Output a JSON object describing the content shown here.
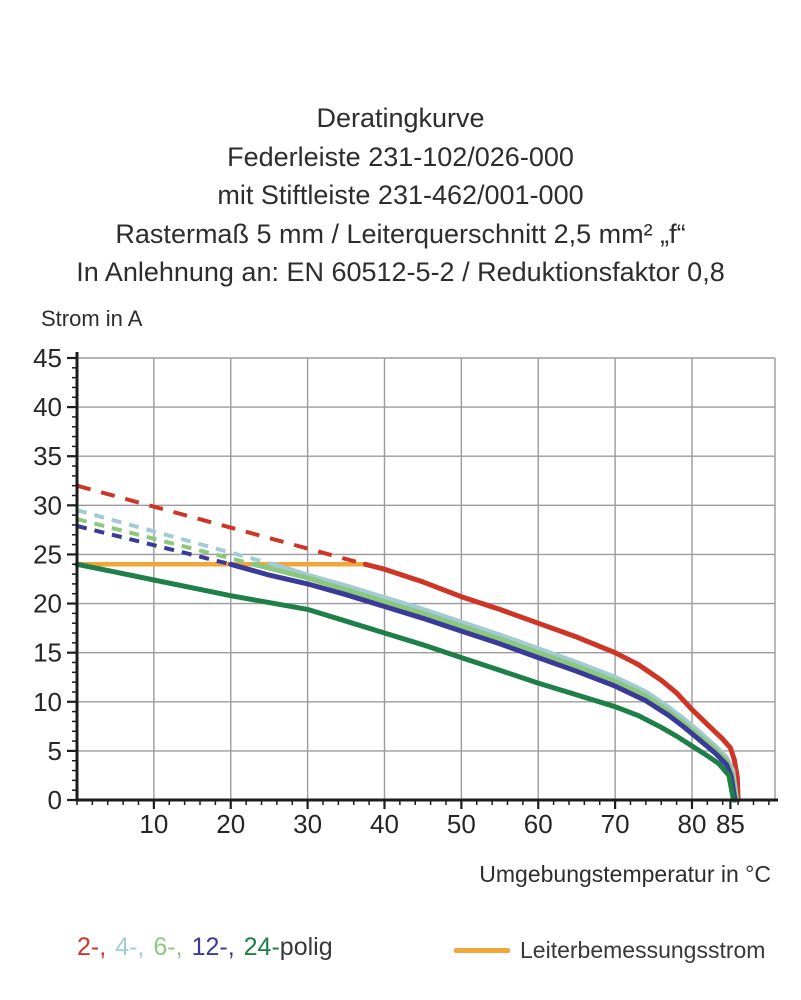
{
  "header": {
    "lines": [
      "Deratingkurve",
      "Federleiste 231-102/026-000",
      "mit Stiftleiste 231-462/001-000",
      "Rastermaß 5 mm / Leiterquerschnitt 2,5 mm² „f“",
      "In Anlehnung an: EN 60512-5-2 / Reduktionsfaktor 0,8"
    ]
  },
  "chart_data": {
    "type": "line",
    "title": "Deratingkurve",
    "y_axis_title": "Strom in A",
    "x_axis_title": "Umgebungstemperatur in °C",
    "x_unit": "°C",
    "y_unit": "A",
    "xlim": [
      0,
      90.8
    ],
    "ylim": [
      0,
      45
    ],
    "x_ticks_labeled": [
      10,
      20,
      30,
      40,
      50,
      60,
      70,
      80,
      85
    ],
    "x_minor_step": 2,
    "y_ticks_labeled": [
      0,
      5,
      10,
      15,
      20,
      25,
      30,
      35,
      40,
      45
    ],
    "y_minor_step": 1,
    "x_gridlines": [
      10,
      20,
      30,
      40,
      50,
      60,
      70,
      80,
      90.8
    ],
    "y_gridlines": [
      5,
      10,
      15,
      20,
      25,
      30,
      35,
      40,
      45
    ],
    "grid_on": true,
    "grid_color": "#9b9b9b",
    "axis_color": "#1c1c1c",
    "rated_current": {
      "label": "Leiterbemessungsstrom",
      "value": 24,
      "x_start": 0,
      "x_end": 37.5,
      "color": "#f2a638"
    },
    "series": [
      {
        "name": "2-polig",
        "color": "#cf3527",
        "dash": "14 11",
        "dashed": [
          [
            0,
            32
          ],
          [
            37.5,
            24
          ]
        ],
        "solid": [
          [
            37.5,
            24
          ],
          [
            40,
            23.5
          ],
          [
            45,
            22.2
          ],
          [
            50,
            20.7
          ],
          [
            55,
            19.4
          ],
          [
            60,
            18.0
          ],
          [
            65,
            16.6
          ],
          [
            70,
            15.0
          ],
          [
            73,
            13.8
          ],
          [
            76,
            12.2
          ],
          [
            78,
            10.9
          ],
          [
            80,
            9.2
          ],
          [
            82,
            7.7
          ],
          [
            84,
            6.2
          ],
          [
            85,
            5.3
          ],
          [
            85.5,
            4.1
          ],
          [
            85.9,
            2.3
          ],
          [
            86,
            0
          ]
        ]
      },
      {
        "name": "4-polig",
        "color": "#a3cbd7",
        "dash": "10 8",
        "dashed": [
          [
            0,
            29.5
          ],
          [
            25.5,
            24
          ]
        ],
        "solid": [
          [
            25.5,
            24
          ],
          [
            30,
            22.9
          ],
          [
            35,
            21.8
          ],
          [
            40,
            20.6
          ],
          [
            45,
            19.4
          ],
          [
            50,
            18.1
          ],
          [
            55,
            16.8
          ],
          [
            60,
            15.4
          ],
          [
            65,
            14.0
          ],
          [
            70,
            12.5
          ],
          [
            74,
            11.0
          ],
          [
            77,
            9.4
          ],
          [
            79,
            8.2
          ],
          [
            81,
            6.9
          ],
          [
            83,
            5.5
          ],
          [
            84.5,
            4.3
          ],
          [
            85.3,
            3.0
          ],
          [
            85.8,
            0
          ]
        ]
      },
      {
        "name": "6-polig",
        "color": "#8cc87c",
        "dash": "10 8",
        "dashed": [
          [
            0,
            28.6
          ],
          [
            23,
            24
          ]
        ],
        "solid": [
          [
            23,
            24
          ],
          [
            30,
            22.6
          ],
          [
            35,
            21.4
          ],
          [
            40,
            20.2
          ],
          [
            45,
            19.0
          ],
          [
            50,
            17.7
          ],
          [
            55,
            16.4
          ],
          [
            60,
            15.0
          ],
          [
            65,
            13.6
          ],
          [
            70,
            12.1
          ],
          [
            74,
            10.6
          ],
          [
            77,
            9.0
          ],
          [
            79,
            7.8
          ],
          [
            81,
            6.5
          ],
          [
            83,
            5.2
          ],
          [
            84.5,
            4.0
          ],
          [
            85.2,
            2.7
          ],
          [
            85.7,
            0
          ]
        ]
      },
      {
        "name": "12-polig",
        "color": "#3a3a9a",
        "dash": "10 8",
        "dashed": [
          [
            0,
            27.9
          ],
          [
            20,
            24
          ]
        ],
        "solid": [
          [
            20,
            24
          ],
          [
            25,
            22.9
          ],
          [
            30,
            22.0
          ],
          [
            35,
            20.9
          ],
          [
            40,
            19.7
          ],
          [
            45,
            18.5
          ],
          [
            50,
            17.2
          ],
          [
            55,
            15.9
          ],
          [
            60,
            14.5
          ],
          [
            65,
            13.1
          ],
          [
            70,
            11.6
          ],
          [
            74,
            10.1
          ],
          [
            77,
            8.6
          ],
          [
            79,
            7.4
          ],
          [
            81,
            6.1
          ],
          [
            83,
            4.8
          ],
          [
            84.5,
            3.6
          ],
          [
            85.1,
            2.4
          ],
          [
            85.6,
            0
          ]
        ]
      },
      {
        "name": "24-polig",
        "color": "#1e8048",
        "dash": null,
        "dashed": null,
        "solid": [
          [
            0,
            24
          ],
          [
            5,
            23.2
          ],
          [
            10,
            22.4
          ],
          [
            15,
            21.6
          ],
          [
            20,
            20.8
          ],
          [
            25,
            20.1
          ],
          [
            30,
            19.4
          ],
          [
            35,
            18.2
          ],
          [
            40,
            17.0
          ],
          [
            45,
            15.8
          ],
          [
            50,
            14.5
          ],
          [
            55,
            13.2
          ],
          [
            60,
            11.9
          ],
          [
            65,
            10.7
          ],
          [
            70,
            9.5
          ],
          [
            73,
            8.6
          ],
          [
            76,
            7.4
          ],
          [
            78,
            6.5
          ],
          [
            80,
            5.5
          ],
          [
            82,
            4.5
          ],
          [
            83.5,
            3.7
          ],
          [
            84.8,
            2.5
          ],
          [
            85.4,
            0
          ]
        ]
      }
    ]
  },
  "legend": {
    "series_tokens": [
      {
        "label": "2-,",
        "color": "#cf3527"
      },
      {
        "label": "4-,",
        "color": "#a3cbd7"
      },
      {
        "label": "6-,",
        "color": "#8cc87c"
      },
      {
        "label": "12-,",
        "color": "#3a3a9a"
      },
      {
        "label": "24-",
        "color": "#1e8048"
      }
    ],
    "suffix": "polig",
    "suffix_color": "#383838",
    "rated": {
      "label": "Leiterbemessungsstrom",
      "color": "#f2a638"
    }
  }
}
